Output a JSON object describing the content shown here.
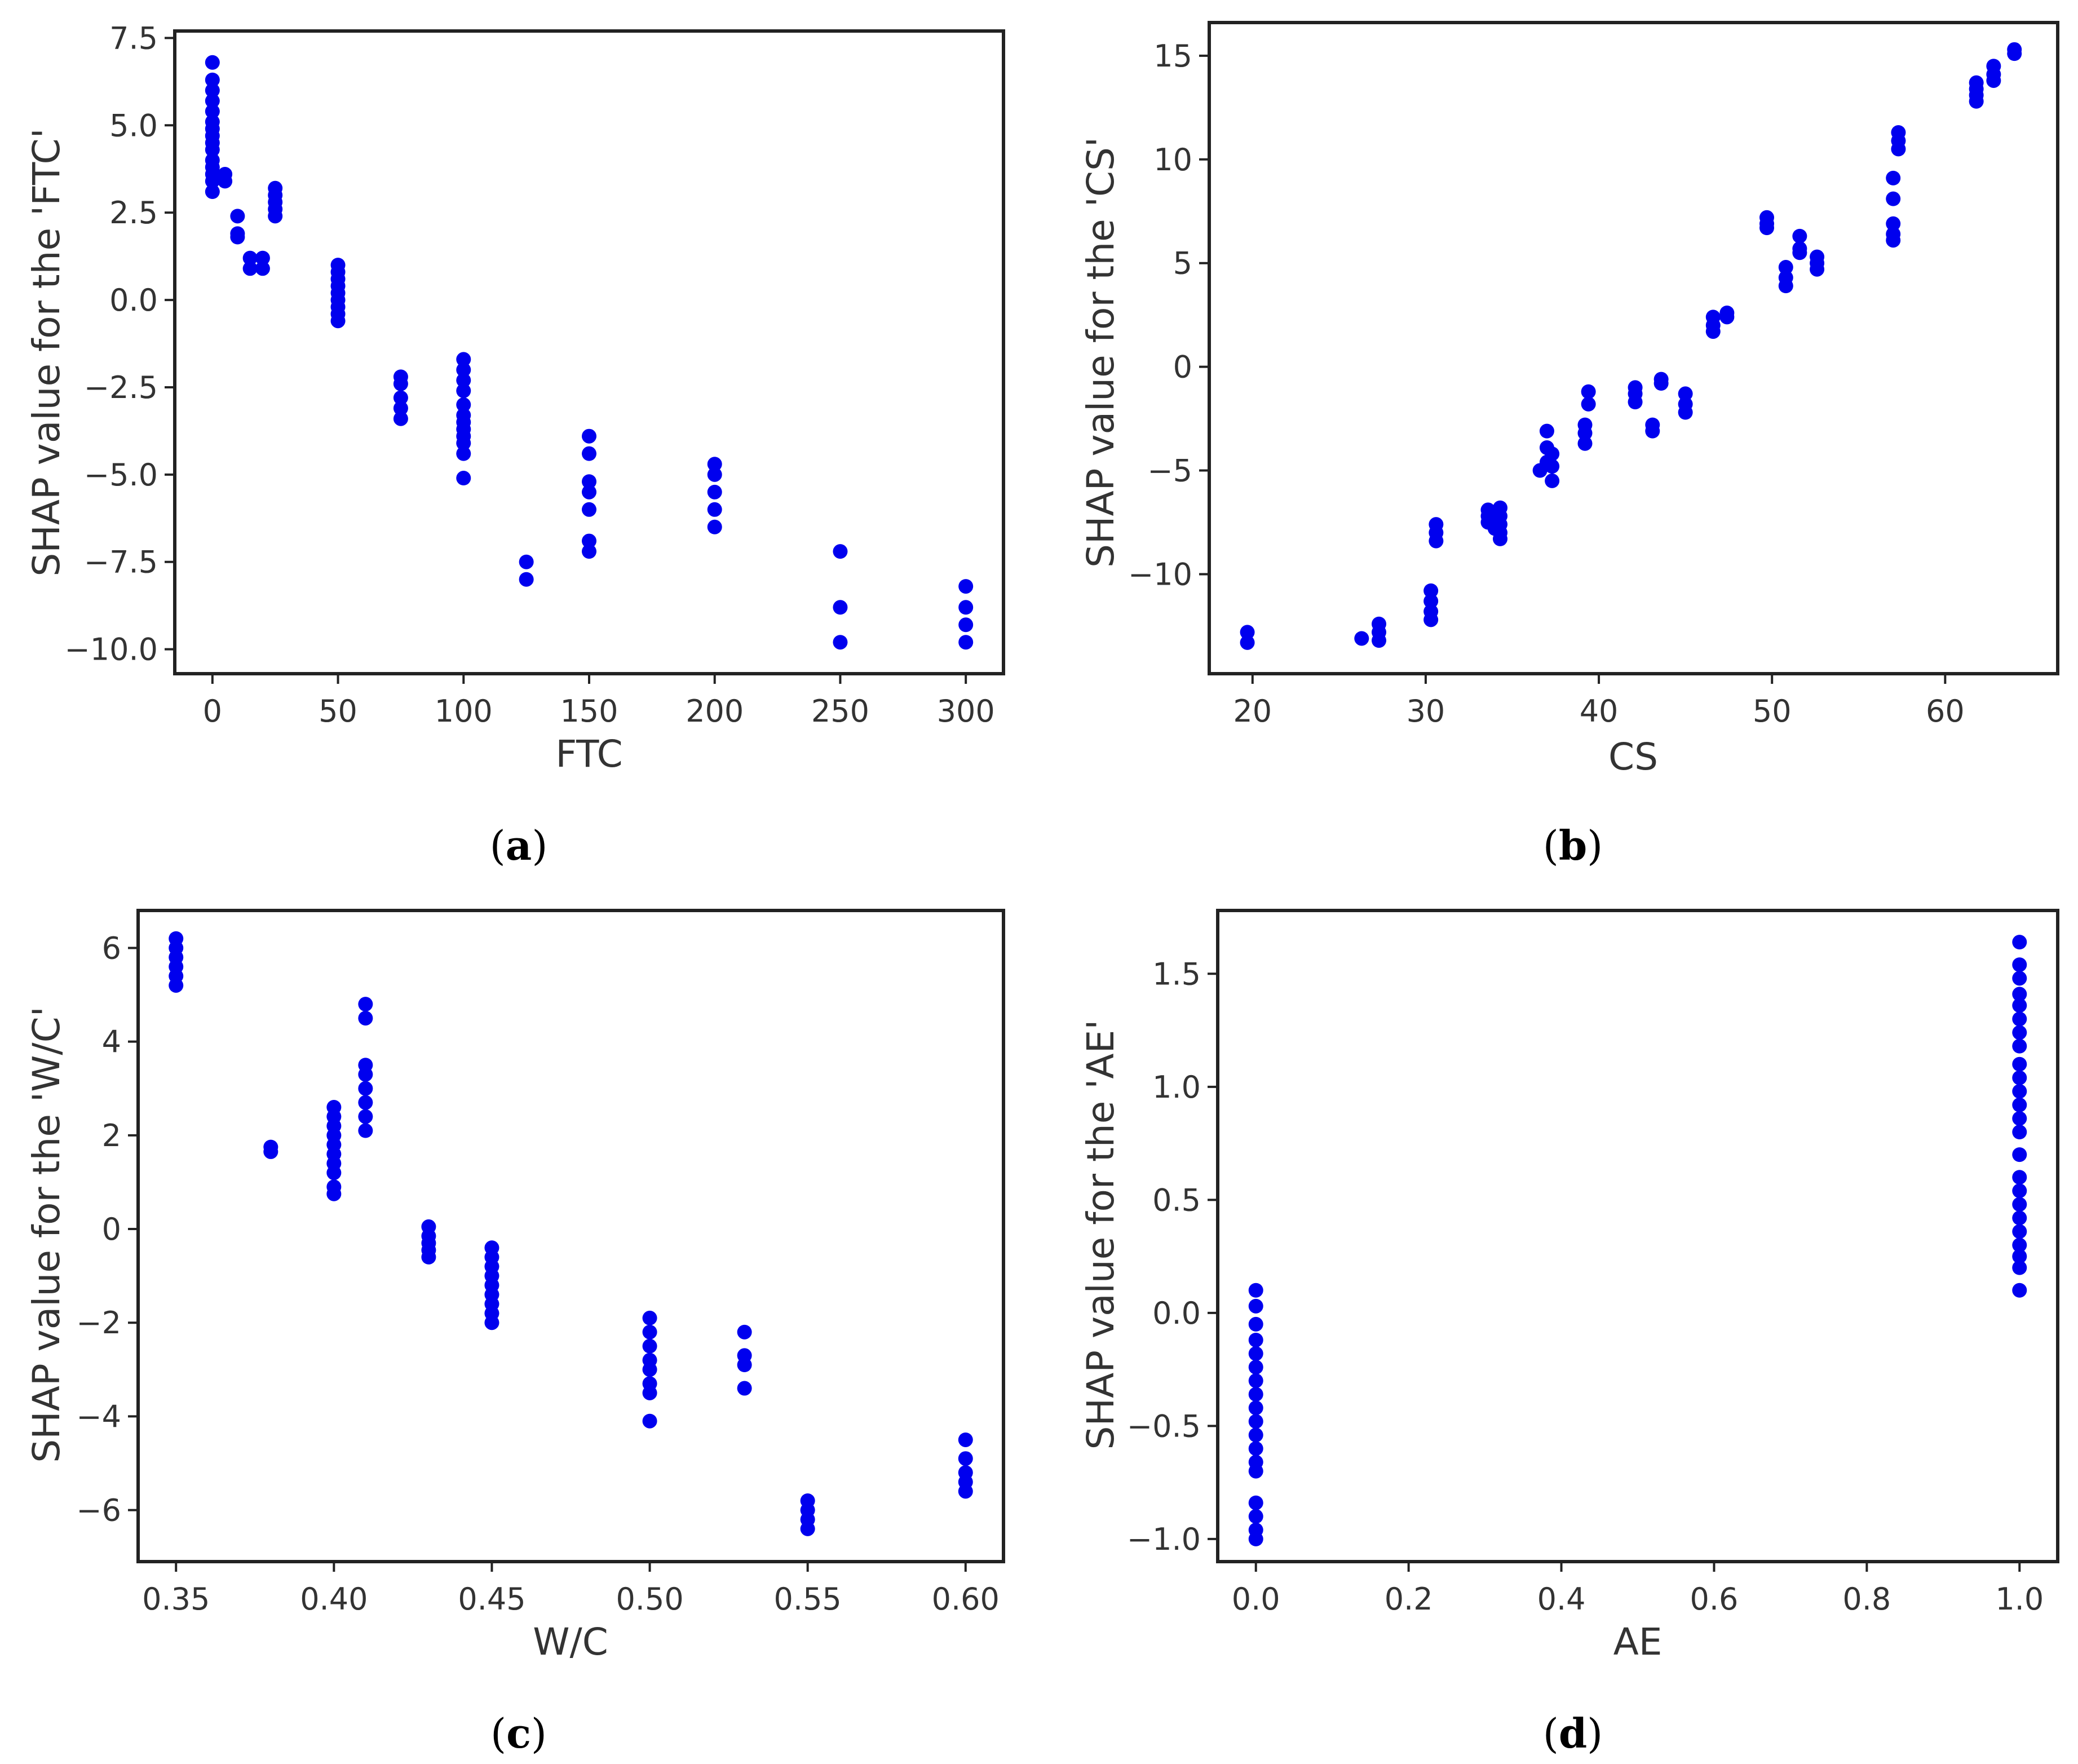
{
  "colors": {
    "point": "#0000ee",
    "axis": "#222222",
    "text": "#333333"
  },
  "chart_data": [
    {
      "id": "a",
      "type": "scatter",
      "panel_label": "a",
      "title": "",
      "xlabel": "FTC",
      "ylabel": "SHAP value for the 'FTC'",
      "xlim": [
        -15,
        315
      ],
      "ylim": [
        -10.7,
        7.7
      ],
      "xticks": [
        0,
        50,
        100,
        150,
        200,
        250,
        300
      ],
      "xtick_labels": [
        "0",
        "50",
        "100",
        "150",
        "200",
        "250",
        "300"
      ],
      "yticks": [
        -10.0,
        -7.5,
        -5.0,
        -2.5,
        0.0,
        2.5,
        5.0,
        7.5
      ],
      "ytick_labels": [
        "−10.0",
        "−7.5",
        "−5.0",
        "−2.5",
        "0.0",
        "2.5",
        "5.0",
        "7.5"
      ],
      "points": [
        {
          "x": 0,
          "y": 6.8
        },
        {
          "x": 0,
          "y": 6.3
        },
        {
          "x": 0,
          "y": 6.0
        },
        {
          "x": 0,
          "y": 5.7
        },
        {
          "x": 0,
          "y": 5.4
        },
        {
          "x": 0,
          "y": 5.1
        },
        {
          "x": 0,
          "y": 4.9
        },
        {
          "x": 0,
          "y": 4.7
        },
        {
          "x": 0,
          "y": 4.5
        },
        {
          "x": 0,
          "y": 4.3
        },
        {
          "x": 0,
          "y": 4.0
        },
        {
          "x": 0,
          "y": 3.8
        },
        {
          "x": 0,
          "y": 3.6
        },
        {
          "x": 0,
          "y": 3.4
        },
        {
          "x": 0,
          "y": 3.1
        },
        {
          "x": 5,
          "y": 3.6
        },
        {
          "x": 5,
          "y": 3.4
        },
        {
          "x": 10,
          "y": 2.4
        },
        {
          "x": 10,
          "y": 1.9
        },
        {
          "x": 10,
          "y": 1.8
        },
        {
          "x": 15,
          "y": 1.2
        },
        {
          "x": 15,
          "y": 0.9
        },
        {
          "x": 20,
          "y": 1.2
        },
        {
          "x": 20,
          "y": 0.9
        },
        {
          "x": 25,
          "y": 3.2
        },
        {
          "x": 25,
          "y": 3.0
        },
        {
          "x": 25,
          "y": 2.8
        },
        {
          "x": 25,
          "y": 2.6
        },
        {
          "x": 25,
          "y": 2.4
        },
        {
          "x": 50,
          "y": 1.0
        },
        {
          "x": 50,
          "y": 0.8
        },
        {
          "x": 50,
          "y": 0.6
        },
        {
          "x": 50,
          "y": 0.4
        },
        {
          "x": 50,
          "y": 0.2
        },
        {
          "x": 50,
          "y": 0.0
        },
        {
          "x": 50,
          "y": -0.2
        },
        {
          "x": 50,
          "y": -0.4
        },
        {
          "x": 50,
          "y": -0.6
        },
        {
          "x": 75,
          "y": -2.2
        },
        {
          "x": 75,
          "y": -2.4
        },
        {
          "x": 75,
          "y": -2.8
        },
        {
          "x": 75,
          "y": -3.1
        },
        {
          "x": 75,
          "y": -3.4
        },
        {
          "x": 100,
          "y": -1.7
        },
        {
          "x": 100,
          "y": -2.0
        },
        {
          "x": 100,
          "y": -2.3
        },
        {
          "x": 100,
          "y": -2.6
        },
        {
          "x": 100,
          "y": -3.0
        },
        {
          "x": 100,
          "y": -3.3
        },
        {
          "x": 100,
          "y": -3.5
        },
        {
          "x": 100,
          "y": -3.7
        },
        {
          "x": 100,
          "y": -3.9
        },
        {
          "x": 100,
          "y": -4.1
        },
        {
          "x": 100,
          "y": -4.4
        },
        {
          "x": 100,
          "y": -5.1
        },
        {
          "x": 125,
          "y": -7.5
        },
        {
          "x": 125,
          "y": -8.0
        },
        {
          "x": 150,
          "y": -3.9
        },
        {
          "x": 150,
          "y": -4.4
        },
        {
          "x": 150,
          "y": -5.2
        },
        {
          "x": 150,
          "y": -5.5
        },
        {
          "x": 150,
          "y": -6.0
        },
        {
          "x": 150,
          "y": -6.9
        },
        {
          "x": 150,
          "y": -7.2
        },
        {
          "x": 200,
          "y": -4.7
        },
        {
          "x": 200,
          "y": -5.0
        },
        {
          "x": 200,
          "y": -5.5
        },
        {
          "x": 200,
          "y": -6.0
        },
        {
          "x": 200,
          "y": -6.5
        },
        {
          "x": 250,
          "y": -7.2
        },
        {
          "x": 250,
          "y": -8.8
        },
        {
          "x": 250,
          "y": -9.8
        },
        {
          "x": 300,
          "y": -8.2
        },
        {
          "x": 300,
          "y": -8.8
        },
        {
          "x": 300,
          "y": -9.3
        },
        {
          "x": 300,
          "y": -9.8
        }
      ]
    },
    {
      "id": "b",
      "type": "scatter",
      "panel_label": "b",
      "title": "",
      "xlabel": "CS",
      "ylabel": "SHAP value for the 'CS'",
      "xlim": [
        17.5,
        66.5
      ],
      "ylim": [
        -14.8,
        16.6
      ],
      "xticks": [
        20,
        30,
        40,
        50,
        60
      ],
      "xtick_labels": [
        "20",
        "30",
        "40",
        "50",
        "60"
      ],
      "yticks": [
        -10,
        -5,
        0,
        5,
        10,
        15
      ],
      "ytick_labels": [
        "−10",
        "−5",
        "0",
        "5",
        "10",
        "15"
      ],
      "points": [
        {
          "x": 19.7,
          "y": -12.8
        },
        {
          "x": 19.7,
          "y": -13.3
        },
        {
          "x": 26.3,
          "y": -13.1
        },
        {
          "x": 27.3,
          "y": -12.4
        },
        {
          "x": 27.3,
          "y": -12.8
        },
        {
          "x": 27.3,
          "y": -13.2
        },
        {
          "x": 30.3,
          "y": -10.8
        },
        {
          "x": 30.3,
          "y": -11.3
        },
        {
          "x": 30.3,
          "y": -11.8
        },
        {
          "x": 30.3,
          "y": -12.2
        },
        {
          "x": 30.6,
          "y": -7.6
        },
        {
          "x": 30.6,
          "y": -8.0
        },
        {
          "x": 30.6,
          "y": -8.4
        },
        {
          "x": 33.6,
          "y": -6.9
        },
        {
          "x": 33.6,
          "y": -7.2
        },
        {
          "x": 33.6,
          "y": -7.5
        },
        {
          "x": 34.0,
          "y": -7.4
        },
        {
          "x": 34.0,
          "y": -7.8
        },
        {
          "x": 34.3,
          "y": -6.8
        },
        {
          "x": 34.3,
          "y": -7.2
        },
        {
          "x": 34.3,
          "y": -7.6
        },
        {
          "x": 34.3,
          "y": -8.0
        },
        {
          "x": 34.3,
          "y": -8.3
        },
        {
          "x": 36.6,
          "y": -5.0
        },
        {
          "x": 37.0,
          "y": -3.1
        },
        {
          "x": 37.0,
          "y": -3.9
        },
        {
          "x": 37.0,
          "y": -4.6
        },
        {
          "x": 37.3,
          "y": -4.2
        },
        {
          "x": 37.3,
          "y": -4.8
        },
        {
          "x": 37.3,
          "y": -5.5
        },
        {
          "x": 39.2,
          "y": -2.8
        },
        {
          "x": 39.2,
          "y": -3.2
        },
        {
          "x": 39.2,
          "y": -3.7
        },
        {
          "x": 39.4,
          "y": -1.2
        },
        {
          "x": 39.4,
          "y": -1.8
        },
        {
          "x": 42.1,
          "y": -1.0
        },
        {
          "x": 42.1,
          "y": -1.3
        },
        {
          "x": 42.1,
          "y": -1.7
        },
        {
          "x": 43.1,
          "y": -2.8
        },
        {
          "x": 43.1,
          "y": -3.1
        },
        {
          "x": 43.6,
          "y": -0.6
        },
        {
          "x": 43.6,
          "y": -0.8
        },
        {
          "x": 45.0,
          "y": -1.3
        },
        {
          "x": 45.0,
          "y": -1.8
        },
        {
          "x": 45.0,
          "y": -2.2
        },
        {
          "x": 46.6,
          "y": 2.4
        },
        {
          "x": 46.6,
          "y": 2.0
        },
        {
          "x": 46.6,
          "y": 1.7
        },
        {
          "x": 47.4,
          "y": 2.6
        },
        {
          "x": 47.4,
          "y": 2.4
        },
        {
          "x": 49.7,
          "y": 7.2
        },
        {
          "x": 49.7,
          "y": 6.9
        },
        {
          "x": 49.7,
          "y": 6.7
        },
        {
          "x": 50.8,
          "y": 4.8
        },
        {
          "x": 50.8,
          "y": 4.3
        },
        {
          "x": 50.8,
          "y": 3.9
        },
        {
          "x": 51.6,
          "y": 6.3
        },
        {
          "x": 51.6,
          "y": 5.7
        },
        {
          "x": 51.6,
          "y": 5.5
        },
        {
          "x": 52.6,
          "y": 5.3
        },
        {
          "x": 52.6,
          "y": 5.0
        },
        {
          "x": 52.6,
          "y": 4.7
        },
        {
          "x": 57.0,
          "y": 9.1
        },
        {
          "x": 57.0,
          "y": 8.1
        },
        {
          "x": 57.0,
          "y": 6.9
        },
        {
          "x": 57.0,
          "y": 6.4
        },
        {
          "x": 57.0,
          "y": 6.1
        },
        {
          "x": 57.3,
          "y": 11.3
        },
        {
          "x": 57.3,
          "y": 10.9
        },
        {
          "x": 57.3,
          "y": 10.5
        },
        {
          "x": 61.8,
          "y": 13.7
        },
        {
          "x": 61.8,
          "y": 13.4
        },
        {
          "x": 61.8,
          "y": 13.1
        },
        {
          "x": 61.8,
          "y": 12.8
        },
        {
          "x": 62.8,
          "y": 14.5
        },
        {
          "x": 62.8,
          "y": 14.1
        },
        {
          "x": 62.8,
          "y": 13.8
        },
        {
          "x": 64.0,
          "y": 15.3
        },
        {
          "x": 64.0,
          "y": 15.1
        }
      ]
    },
    {
      "id": "c",
      "type": "scatter",
      "panel_label": "c",
      "title": "",
      "xlabel": "W/C",
      "ylabel": "SHAP value for the 'W/C'",
      "xlim": [
        0.338,
        0.612
      ],
      "ylim": [
        -7.1,
        6.8
      ],
      "xticks": [
        0.35,
        0.4,
        0.45,
        0.5,
        0.55,
        0.6
      ],
      "xtick_labels": [
        "0.35",
        "0.40",
        "0.45",
        "0.50",
        "0.55",
        "0.60"
      ],
      "yticks": [
        -6,
        -4,
        -2,
        0,
        2,
        4,
        6
      ],
      "ytick_labels": [
        "−6",
        "−4",
        "−2",
        "0",
        "2",
        "4",
        "6"
      ],
      "points": [
        {
          "x": 0.35,
          "y": 6.2
        },
        {
          "x": 0.35,
          "y": 6.0
        },
        {
          "x": 0.35,
          "y": 5.8
        },
        {
          "x": 0.35,
          "y": 5.6
        },
        {
          "x": 0.35,
          "y": 5.4
        },
        {
          "x": 0.35,
          "y": 5.2
        },
        {
          "x": 0.38,
          "y": 1.75
        },
        {
          "x": 0.38,
          "y": 1.65
        },
        {
          "x": 0.4,
          "y": 2.6
        },
        {
          "x": 0.4,
          "y": 2.4
        },
        {
          "x": 0.4,
          "y": 2.2
        },
        {
          "x": 0.4,
          "y": 2.0
        },
        {
          "x": 0.4,
          "y": 1.8
        },
        {
          "x": 0.4,
          "y": 1.6
        },
        {
          "x": 0.4,
          "y": 1.4
        },
        {
          "x": 0.4,
          "y": 1.2
        },
        {
          "x": 0.4,
          "y": 0.9
        },
        {
          "x": 0.4,
          "y": 0.75
        },
        {
          "x": 0.41,
          "y": 4.8
        },
        {
          "x": 0.41,
          "y": 4.5
        },
        {
          "x": 0.41,
          "y": 3.5
        },
        {
          "x": 0.41,
          "y": 3.3
        },
        {
          "x": 0.41,
          "y": 3.0
        },
        {
          "x": 0.41,
          "y": 2.7
        },
        {
          "x": 0.41,
          "y": 2.4
        },
        {
          "x": 0.41,
          "y": 2.1
        },
        {
          "x": 0.43,
          "y": 0.05
        },
        {
          "x": 0.43,
          "y": -0.15
        },
        {
          "x": 0.43,
          "y": -0.3
        },
        {
          "x": 0.43,
          "y": -0.45
        },
        {
          "x": 0.43,
          "y": -0.6
        },
        {
          "x": 0.45,
          "y": -0.4
        },
        {
          "x": 0.45,
          "y": -0.6
        },
        {
          "x": 0.45,
          "y": -0.8
        },
        {
          "x": 0.45,
          "y": -1.0
        },
        {
          "x": 0.45,
          "y": -1.2
        },
        {
          "x": 0.45,
          "y": -1.4
        },
        {
          "x": 0.45,
          "y": -1.6
        },
        {
          "x": 0.45,
          "y": -1.8
        },
        {
          "x": 0.45,
          "y": -2.0
        },
        {
          "x": 0.5,
          "y": -1.9
        },
        {
          "x": 0.5,
          "y": -2.2
        },
        {
          "x": 0.5,
          "y": -2.5
        },
        {
          "x": 0.5,
          "y": -2.8
        },
        {
          "x": 0.5,
          "y": -3.0
        },
        {
          "x": 0.5,
          "y": -3.3
        },
        {
          "x": 0.5,
          "y": -3.5
        },
        {
          "x": 0.5,
          "y": -4.1
        },
        {
          "x": 0.53,
          "y": -2.2
        },
        {
          "x": 0.53,
          "y": -2.7
        },
        {
          "x": 0.53,
          "y": -2.9
        },
        {
          "x": 0.53,
          "y": -3.4
        },
        {
          "x": 0.55,
          "y": -5.8
        },
        {
          "x": 0.55,
          "y": -6.0
        },
        {
          "x": 0.55,
          "y": -6.2
        },
        {
          "x": 0.55,
          "y": -6.4
        },
        {
          "x": 0.6,
          "y": -4.5
        },
        {
          "x": 0.6,
          "y": -4.9
        },
        {
          "x": 0.6,
          "y": -5.2
        },
        {
          "x": 0.6,
          "y": -5.4
        },
        {
          "x": 0.6,
          "y": -5.6
        }
      ]
    },
    {
      "id": "d",
      "type": "scatter",
      "panel_label": "d",
      "title": "",
      "xlabel": "AE",
      "ylabel": "SHAP value for the 'AE'",
      "xlim": [
        -0.05,
        1.05
      ],
      "ylim": [
        -1.1,
        1.78
      ],
      "xticks": [
        0.0,
        0.2,
        0.4,
        0.6,
        0.8,
        1.0
      ],
      "xtick_labels": [
        "0.0",
        "0.2",
        "0.4",
        "0.6",
        "0.8",
        "1.0"
      ],
      "yticks": [
        -1.0,
        -0.5,
        0.0,
        0.5,
        1.0,
        1.5
      ],
      "ytick_labels": [
        "−1.0",
        "−0.5",
        "0.0",
        "0.5",
        "1.0",
        "1.5"
      ],
      "points": [
        {
          "x": 0,
          "y": 0.1
        },
        {
          "x": 0,
          "y": 0.03
        },
        {
          "x": 0,
          "y": -0.05
        },
        {
          "x": 0,
          "y": -0.12
        },
        {
          "x": 0,
          "y": -0.18
        },
        {
          "x": 0,
          "y": -0.24
        },
        {
          "x": 0,
          "y": -0.3
        },
        {
          "x": 0,
          "y": -0.36
        },
        {
          "x": 0,
          "y": -0.42
        },
        {
          "x": 0,
          "y": -0.48
        },
        {
          "x": 0,
          "y": -0.54
        },
        {
          "x": 0,
          "y": -0.6
        },
        {
          "x": 0,
          "y": -0.66
        },
        {
          "x": 0,
          "y": -0.7
        },
        {
          "x": 0,
          "y": -0.84
        },
        {
          "x": 0,
          "y": -0.9
        },
        {
          "x": 0,
          "y": -0.96
        },
        {
          "x": 0,
          "y": -1.0
        },
        {
          "x": 1,
          "y": 1.64
        },
        {
          "x": 1,
          "y": 1.54
        },
        {
          "x": 1,
          "y": 1.48
        },
        {
          "x": 1,
          "y": 1.41
        },
        {
          "x": 1,
          "y": 1.36
        },
        {
          "x": 1,
          "y": 1.3
        },
        {
          "x": 1,
          "y": 1.24
        },
        {
          "x": 1,
          "y": 1.18
        },
        {
          "x": 1,
          "y": 1.1
        },
        {
          "x": 1,
          "y": 1.04
        },
        {
          "x": 1,
          "y": 0.98
        },
        {
          "x": 1,
          "y": 0.92
        },
        {
          "x": 1,
          "y": 0.86
        },
        {
          "x": 1,
          "y": 0.8
        },
        {
          "x": 1,
          "y": 0.7
        },
        {
          "x": 1,
          "y": 0.6
        },
        {
          "x": 1,
          "y": 0.54
        },
        {
          "x": 1,
          "y": 0.48
        },
        {
          "x": 1,
          "y": 0.42
        },
        {
          "x": 1,
          "y": 0.36
        },
        {
          "x": 1,
          "y": 0.3
        },
        {
          "x": 1,
          "y": 0.25
        },
        {
          "x": 1,
          "y": 0.2
        },
        {
          "x": 1,
          "y": 0.1
        }
      ]
    }
  ]
}
